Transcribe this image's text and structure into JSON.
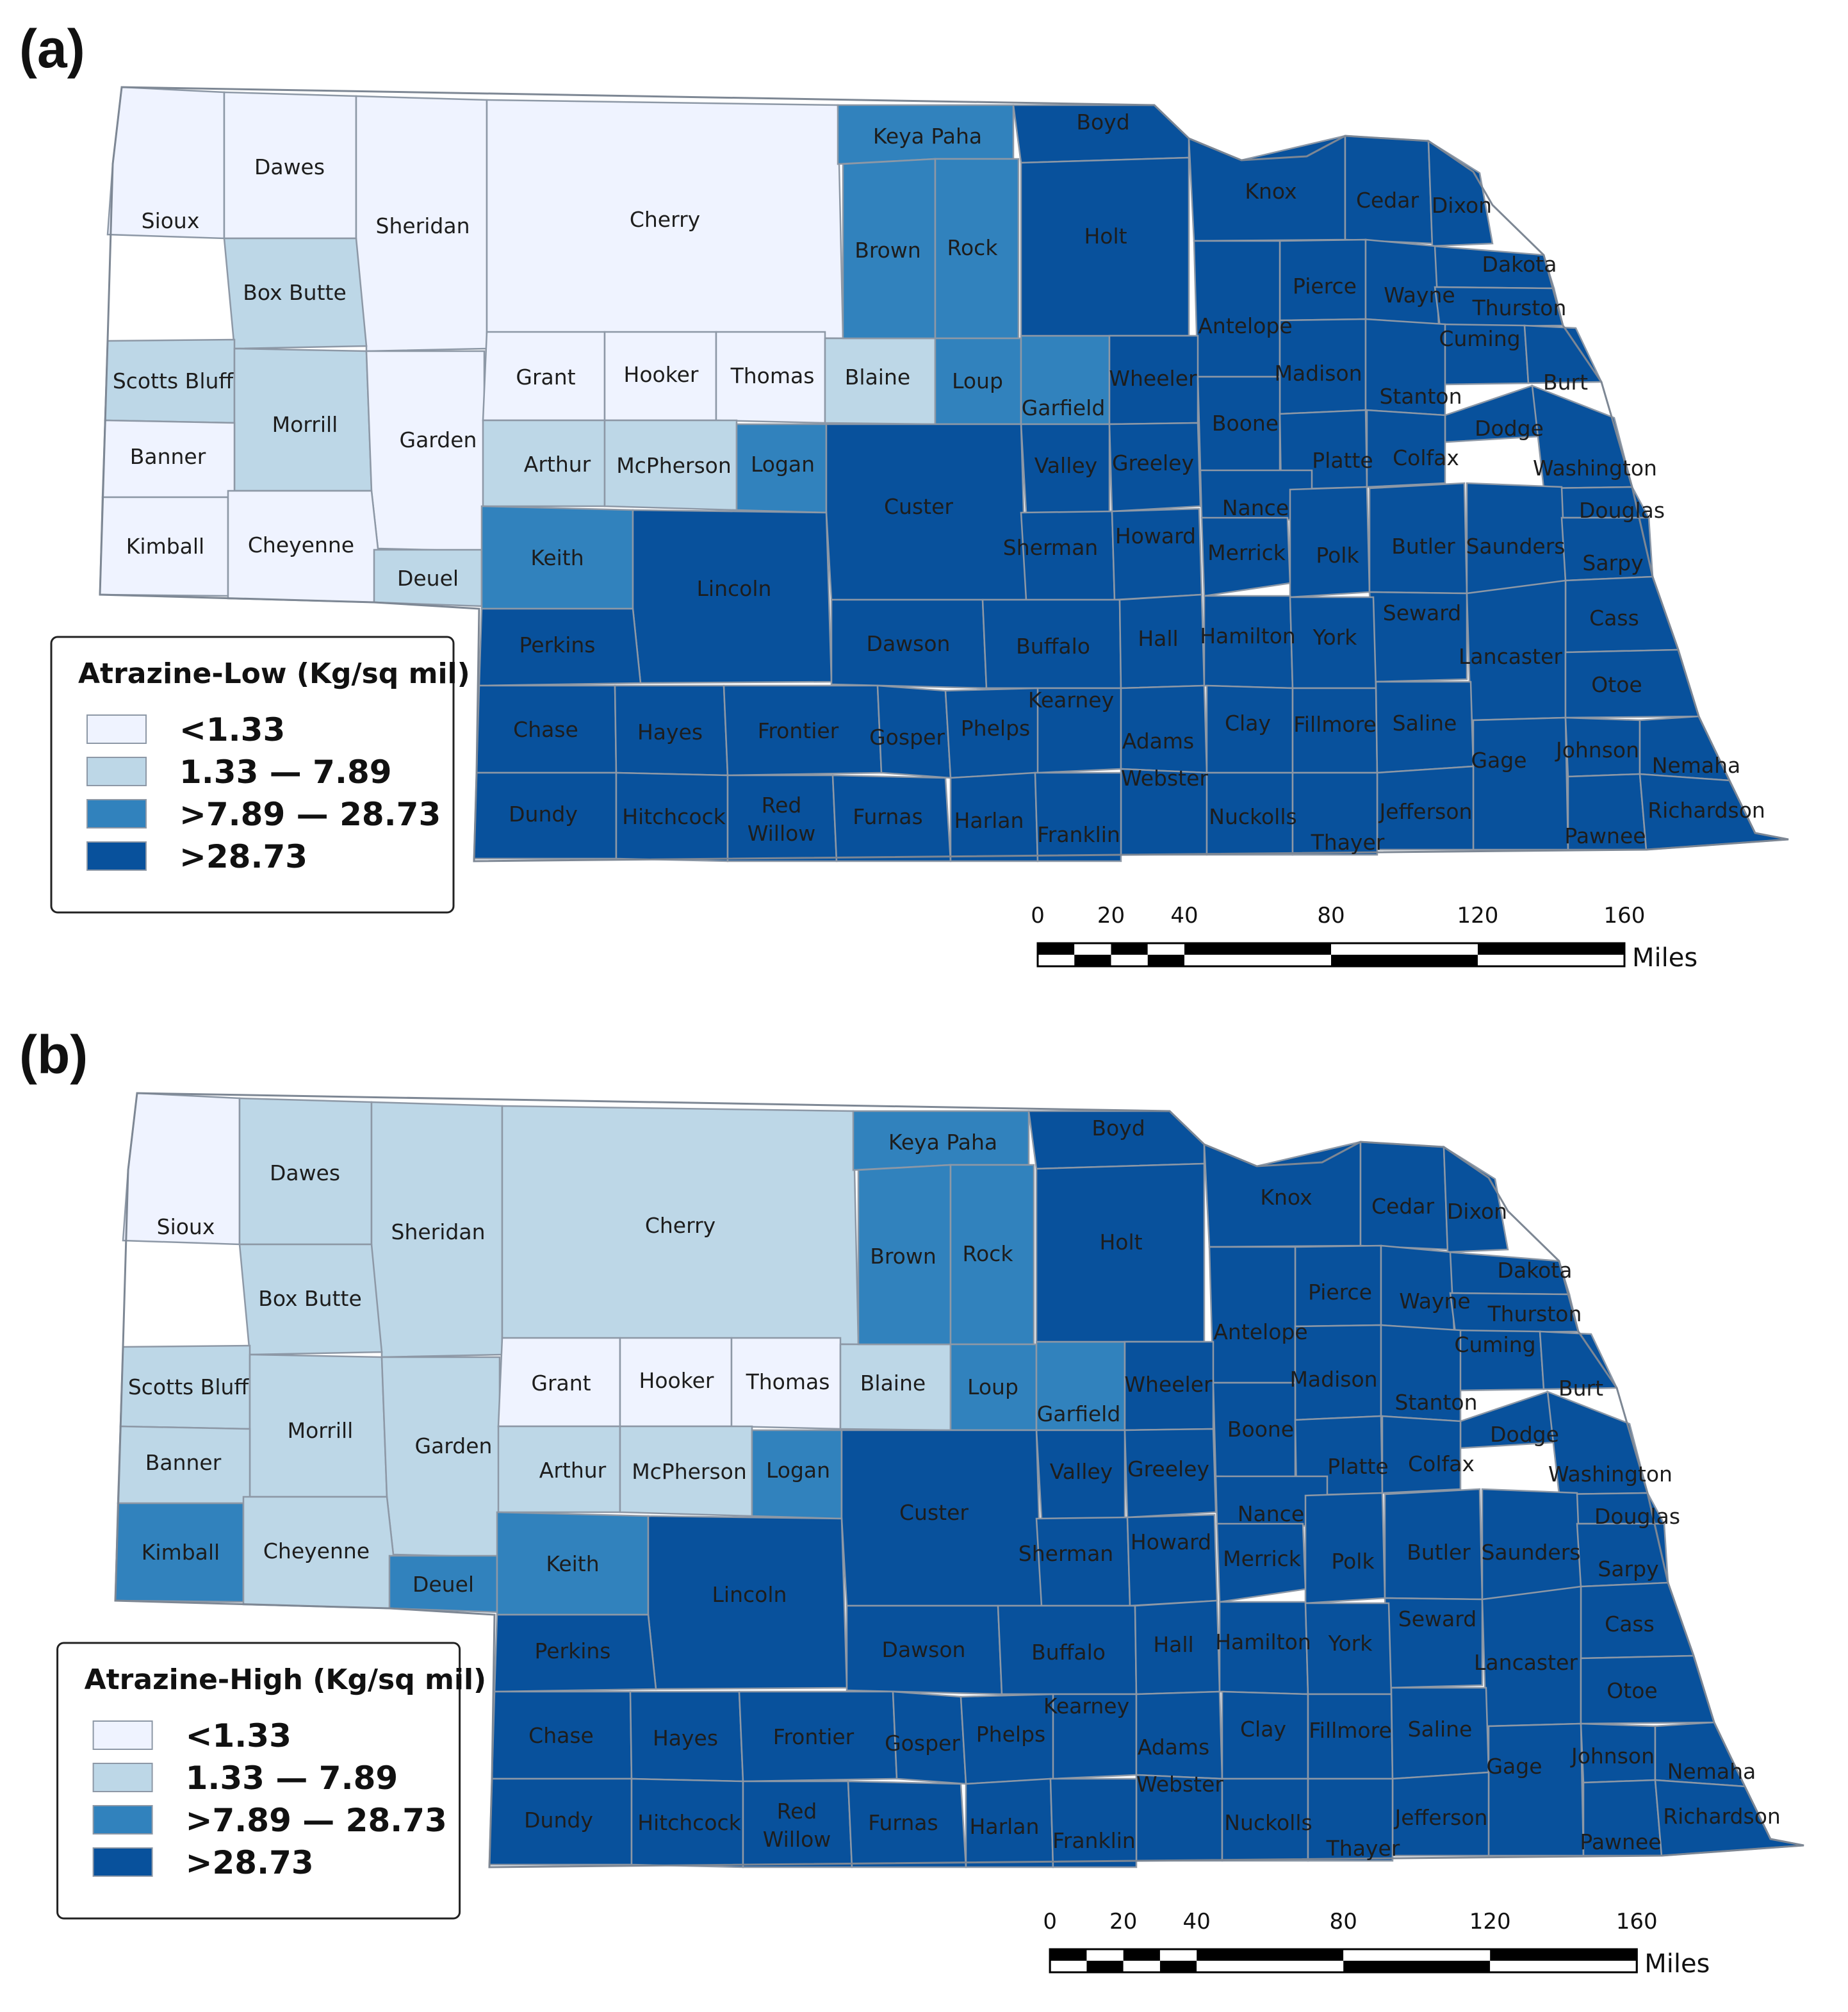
{
  "classes": [
    {
      "key": "c1",
      "label": "<1.33",
      "color": "#eff3ff"
    },
    {
      "key": "c2",
      "label": "1.33 — 7.89",
      "color": "#bdd7e7"
    },
    {
      "key": "c3",
      "label": ">7.89 — 28.73",
      "color": "#3182bd"
    },
    {
      "key": "c4",
      "label": ">28.73",
      "color": "#08519c"
    }
  ],
  "scale": {
    "ticks": [
      "0",
      "20",
      "40",
      "80",
      "120",
      "160"
    ],
    "unit": "Miles"
  },
  "panels": [
    {
      "id": "a",
      "label": "(a)",
      "legend_title": "Atrazine-Low (Kg/sq mil)",
      "counties": {
        "Sioux": "c1",
        "Dawes": "c1",
        "Sheridan": "c1",
        "Cherry": "c1",
        "Box Butte": "c2",
        "Scotts Bluff": "c2",
        "Morrill": "c2",
        "Banner": "c1",
        "Garden": "c1",
        "Kimball": "c1",
        "Cheyenne": "c1",
        "Deuel": "c2",
        "Grant": "c1",
        "Hooker": "c1",
        "Thomas": "c1",
        "Blaine": "c2",
        "Arthur": "c2",
        "McPherson": "c2",
        "Logan": "c3",
        "Keith": "c3",
        "Keya Paha": "c3",
        "Brown": "c3",
        "Rock": "c3",
        "Loup": "c3",
        "Garfield": "c3"
      }
    },
    {
      "id": "b",
      "label": "(b)",
      "legend_title": "Atrazine-High (Kg/sq mil)",
      "counties": {
        "Sioux": "c1",
        "Dawes": "c2",
        "Sheridan": "c2",
        "Cherry": "c2",
        "Box Butte": "c2",
        "Scotts Bluff": "c2",
        "Morrill": "c2",
        "Banner": "c2",
        "Garden": "c2",
        "Kimball": "c3",
        "Cheyenne": "c2",
        "Deuel": "c3",
        "Grant": "c1",
        "Hooker": "c1",
        "Thomas": "c1",
        "Blaine": "c2",
        "Arthur": "c2",
        "McPherson": "c2",
        "Logan": "c3",
        "Keith": "c3",
        "Keya Paha": "c3",
        "Brown": "c3",
        "Rock": "c3",
        "Loup": "c3",
        "Garfield": "c3"
      }
    }
  ],
  "default_class": "c4",
  "county_names": [
    "Sioux",
    "Dawes",
    "Sheridan",
    "Cherry",
    "Box Butte",
    "Scotts Bluff",
    "Morrill",
    "Banner",
    "Garden",
    "Kimball",
    "Cheyenne",
    "Deuel",
    "Grant",
    "Hooker",
    "Thomas",
    "Blaine",
    "Arthur",
    "McPherson",
    "Logan",
    "Keith",
    "Keya Paha",
    "Brown",
    "Rock",
    "Loup",
    "Garfield",
    "Boyd",
    "Holt",
    "Knox",
    "Cedar",
    "Dixon",
    "Dakota",
    "Pierce",
    "Wayne",
    "Thurston",
    "Antelope",
    "Cuming",
    "Wheeler",
    "Madison",
    "Stanton",
    "Burt",
    "Boone",
    "Dodge",
    "Valley",
    "Greeley",
    "Platte",
    "Colfax",
    "Washington",
    "Custer",
    "Nance",
    "Douglas",
    "Sherman",
    "Howard",
    "Merrick",
    "Polk",
    "Butler",
    "Saunders",
    "Sarpy",
    "Lincoln",
    "Seward",
    "Cass",
    "Perkins",
    "Dawson",
    "Buffalo",
    "Hall",
    "Hamilton",
    "York",
    "Lancaster",
    "Otoe",
    "Kearney",
    "Chase",
    "Hayes",
    "Frontier",
    "Gosper",
    "Phelps",
    "Adams",
    "Clay",
    "Fillmore",
    "Saline",
    "Gage",
    "Johnson",
    "Nemaha",
    "Webster",
    "Dundy",
    "Hitchcock",
    "Red Willow",
    "Furnas",
    "Harlan",
    "Franklin",
    "Nuckolls",
    "Jefferson",
    "Thayer",
    "Pawnee",
    "Richardson"
  ]
}
